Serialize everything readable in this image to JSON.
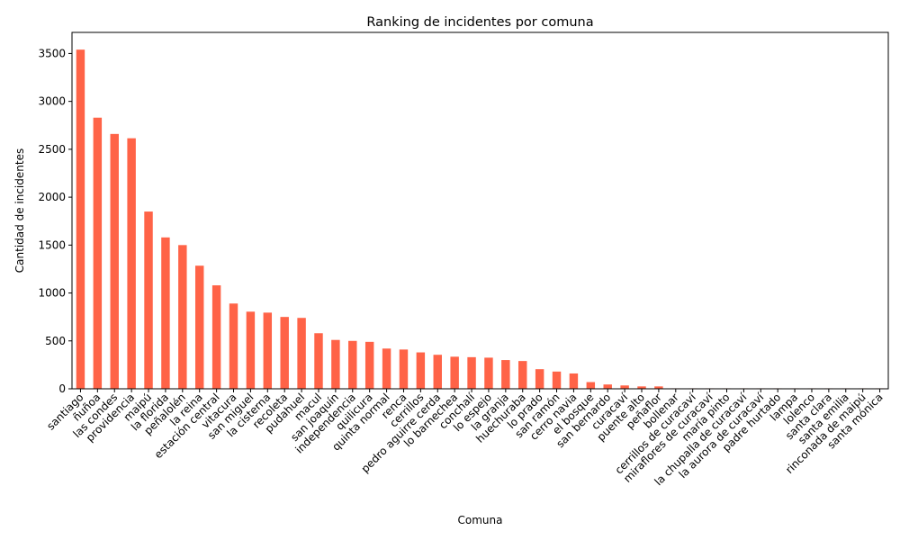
{
  "chart_data": {
    "type": "bar",
    "title": "Ranking de incidentes por comuna",
    "xlabel": "Comuna",
    "ylabel": "Cantidad de incidentes",
    "ylim": [
      0,
      3720
    ],
    "yticks": [
      0,
      500,
      1000,
      1500,
      2000,
      2500,
      3000,
      3500
    ],
    "grid": false,
    "bar_color": "#ff6347",
    "categories": [
      "santiago",
      "ñuñoa",
      "las condes",
      "providencia",
      "maipú",
      "la florida",
      "peñalolén",
      "la reina",
      "estación central",
      "vitacura",
      "san miguel",
      "la cisterna",
      "recoleta",
      "pudahuel",
      "macul",
      "san joaquín",
      "independencia",
      "quilicura",
      "quinta normal",
      "renca",
      "cerrillos",
      "pedro aguirre cerda",
      "lo barnechea",
      "conchalí",
      "lo espejo",
      "la granja",
      "huechuraba",
      "lo prado",
      "san ramón",
      "cerro navia",
      "el bosque",
      "san bernardo",
      "curacaví",
      "puente alto",
      "peñaflor",
      "bollenar",
      "cerrillos de curacaví",
      "miraflores de curacaví",
      "maría pinto",
      "la chupalla de curacaví",
      "la aurora de curacaví",
      "padre hurtado",
      "lampa",
      "lolenco",
      "santa clara",
      "santa emilia",
      "rinconada de maipú",
      "santa mónica"
    ],
    "values": [
      3540,
      2830,
      2660,
      2615,
      1850,
      1580,
      1500,
      1285,
      1080,
      890,
      805,
      795,
      750,
      740,
      580,
      510,
      500,
      490,
      420,
      410,
      380,
      355,
      335,
      330,
      325,
      300,
      290,
      205,
      180,
      160,
      70,
      45,
      35,
      25,
      25,
      5,
      5,
      5,
      5,
      5,
      5,
      5,
      5,
      5,
      5,
      5,
      5,
      5
    ]
  }
}
